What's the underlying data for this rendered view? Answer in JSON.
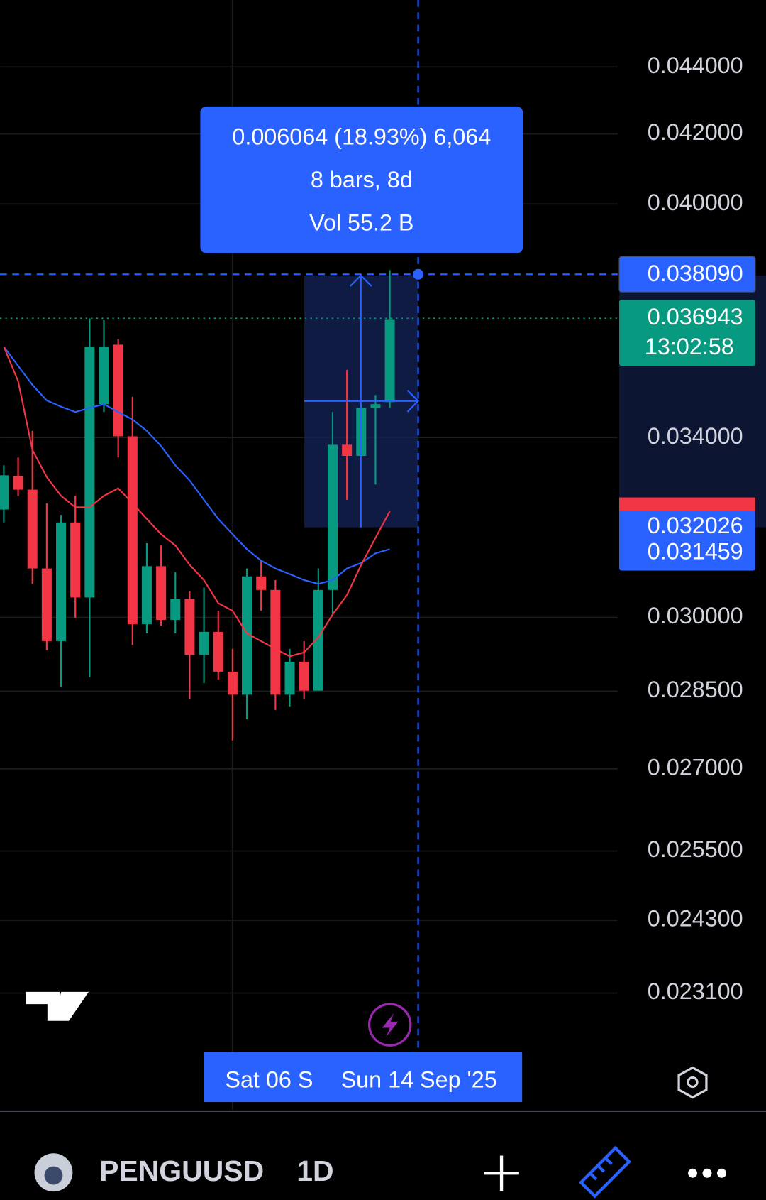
{
  "chart_data": {
    "type": "candlestick",
    "categories": [
      null,
      null,
      null,
      null,
      null,
      null,
      null,
      null,
      null,
      null,
      null,
      null,
      null,
      null,
      null,
      null,
      null,
      null,
      null,
      null,
      null,
      null,
      null,
      null,
      null,
      null,
      null,
      null
    ],
    "open": [
      0.03234,
      0.0331,
      0.03279,
      0.03104,
      0.02951,
      0.03205,
      0.03042,
      0.0348,
      0.03627,
      0.03403,
      0.02986,
      0.03109,
      0.02995,
      0.03039,
      0.02923,
      0.0297,
      0.02889,
      0.02843,
      0.03087,
      0.03058,
      0.02843,
      0.02909,
      0.02851,
      0.03058,
      0.03383,
      0.03357,
      0.03471,
      0.03485
    ],
    "high": [
      0.03335,
      0.03353,
      0.03416,
      0.03248,
      0.03222,
      0.03265,
      0.03694,
      0.0369,
      0.03641,
      0.03498,
      0.03159,
      0.03154,
      0.03096,
      0.03055,
      0.03063,
      0.03014,
      0.02935,
      0.03104,
      0.03121,
      0.03079,
      0.02935,
      0.02951,
      0.03104,
      0.03461,
      0.03564,
      0.0348,
      0.03502,
      0.0382
    ],
    "low": [
      0.03205,
      0.03265,
      0.03071,
      0.02932,
      0.02858,
      0.02999,
      0.02878,
      0.03461,
      0.03353,
      0.02943,
      0.02967,
      0.02983,
      0.02967,
      0.02835,
      0.02866,
      0.02873,
      0.02754,
      0.02795,
      0.03014,
      0.02813,
      0.0282,
      0.02835,
      0.02851,
      0.03006,
      0.03256,
      0.03353,
      0.03291,
      0.03471
    ],
    "close": [
      0.03312,
      0.03279,
      0.03104,
      0.02951,
      0.03205,
      0.03042,
      0.03622,
      0.03622,
      0.03403,
      0.02986,
      0.03109,
      0.02995,
      0.03039,
      0.02923,
      0.0297,
      0.02889,
      0.02843,
      0.03087,
      0.03058,
      0.02843,
      0.02909,
      0.02851,
      0.03058,
      0.03383,
      0.03357,
      0.03471,
      0.0348,
      0.03692
    ],
    "up_color": "#089981",
    "down_color": "#f23645",
    "moving_averages": [
      {
        "color": "#2962ff",
        "values": [
          0.03622,
          0.03574,
          0.03527,
          0.03489,
          0.03474,
          0.03461,
          0.03471,
          0.0348,
          0.03461,
          0.03443,
          0.03416,
          0.0338,
          0.03335,
          0.033,
          0.03256,
          0.03213,
          0.03179,
          0.03146,
          0.03121,
          0.03104,
          0.03092,
          0.03079,
          0.03071,
          0.03079,
          0.03104,
          0.03116,
          0.03137,
          0.03146
        ]
      },
      {
        "color": "#f23645",
        "values": [
          0.03622,
          0.03536,
          0.03371,
          0.03308,
          0.03265,
          0.03239,
          0.03239,
          0.03265,
          0.03282,
          0.03248,
          0.03213,
          0.03179,
          0.03154,
          0.03112,
          0.03079,
          0.0303,
          0.03014,
          0.02967,
          0.02951,
          0.02935,
          0.0292,
          0.02928,
          0.02959,
          0.03006,
          0.03047,
          0.03112,
          0.03171,
          0.0323
        ]
      }
    ],
    "log_scale": true,
    "grid": true,
    "ylim": [
      0.0213,
      0.0461
    ],
    "yticks": [
      {
        "value": 0.044,
        "label": "0.044000"
      },
      {
        "value": 0.042,
        "label": "0.042000"
      },
      {
        "value": 0.04,
        "label": "0.040000"
      },
      {
        "value": 0.034,
        "label": "0.034000"
      },
      {
        "value": 0.03,
        "label": "0.030000"
      },
      {
        "value": 0.0285,
        "label": "0.028500"
      },
      {
        "value": 0.027,
        "label": "0.027000"
      },
      {
        "value": 0.0255,
        "label": "0.025500"
      },
      {
        "value": 0.0243,
        "label": "0.024300"
      },
      {
        "value": 0.0231,
        "label": "0.023100"
      }
    ],
    "crosshair_price": {
      "value": 0.03809,
      "label": "0.038090"
    },
    "last_price": {
      "value": 0.036943,
      "label": "0.036943",
      "countdown": "13:02:58"
    },
    "ma_labels": [
      {
        "value": 0.032026,
        "label": "0.032026"
      },
      {
        "value": 0.031459,
        "label": "0.031459"
      }
    ],
    "measure": [
      "0.006064 (18.93%) 6,064",
      "8 bars, 8d",
      "Vol 55.2 B"
    ],
    "date_labels": [
      "Sat 06 S",
      "Sun 14 Sep '25"
    ]
  },
  "toolbar": {
    "symbol": "PENGUUSD",
    "interval": "1D"
  }
}
